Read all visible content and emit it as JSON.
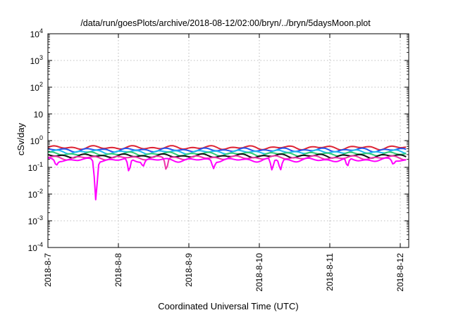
{
  "chart_data": {
    "type": "line",
    "title": "/data/run/goesPlots/archive/2018-08-12/02:00/bryn/../bryn/5daysMoon.plot",
    "xlabel": "Coordinated Universal Time (UTC)",
    "ylabel": "cSv/day",
    "yscale": "log",
    "ylim": [
      0.0001,
      10000
    ],
    "y_ticks": [
      {
        "value": 0.0001,
        "base": "10",
        "exp": "-4"
      },
      {
        "value": 0.001,
        "base": "10",
        "exp": "-3"
      },
      {
        "value": 0.01,
        "base": "10",
        "exp": "-2"
      },
      {
        "value": 0.1,
        "base": "10",
        "exp": "-1"
      },
      {
        "value": 1,
        "base": "10",
        "exp": "0"
      },
      {
        "value": 10,
        "base": "10",
        "exp": ""
      },
      {
        "value": 100,
        "base": "10",
        "exp": "2"
      },
      {
        "value": 1000,
        "base": "10",
        "exp": "3"
      },
      {
        "value": 10000,
        "base": "10",
        "exp": "4"
      }
    ],
    "xlim": [
      "2018-08-07",
      "2018-08-12 02:00"
    ],
    "x_ticks": [
      "2018-8-7",
      "2018-8-8",
      "2018-8-9",
      "2018-8-10",
      "2018-8-11",
      "2018-8-12"
    ],
    "grid": true,
    "series": [
      {
        "color": "#dd2233",
        "base": 0.55,
        "dips": []
      },
      {
        "color": "#2255ee",
        "base": 0.45,
        "dips": []
      },
      {
        "color": "#22bbee",
        "base": 0.38,
        "dips": []
      },
      {
        "color": "#33cc77",
        "base": 0.32,
        "dips": []
      },
      {
        "color": "#111111",
        "base": 0.27,
        "dips": []
      },
      {
        "color": "#ee33aa",
        "base": 0.23,
        "dips": [
          {
            "day": 1.68,
            "value": 0.08
          }
        ]
      },
      {
        "color": "#ff00ff",
        "base": 0.19,
        "dips": [
          {
            "day": 0.12,
            "value": 0.12
          },
          {
            "day": 0.68,
            "value": 0.006
          },
          {
            "day": 1.15,
            "value": 0.07
          },
          {
            "day": 1.35,
            "value": 0.11
          },
          {
            "day": 2.35,
            "value": 0.09
          },
          {
            "day": 3.18,
            "value": 0.08
          },
          {
            "day": 3.3,
            "value": 0.08
          },
          {
            "day": 4.25,
            "value": 0.11
          },
          {
            "day": 4.9,
            "value": 0.13
          }
        ]
      }
    ]
  }
}
